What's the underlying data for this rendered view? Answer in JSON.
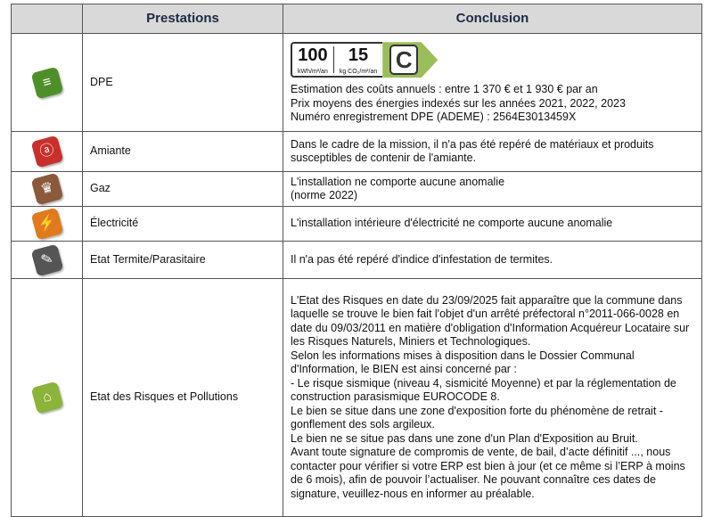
{
  "headers": {
    "prestations": "Prestations",
    "conclusion": "Conclusion"
  },
  "dpe_label": {
    "energy_value": "100",
    "energy_unit": "kWh/m²/an",
    "co2_value": "15",
    "co2_unit": "kg CO₂/m²/an",
    "class": "C",
    "class_color": "#9cbd5b"
  },
  "rows": [
    {
      "name": "DPE",
      "icon": "energy-label-icon",
      "color": "#4f8f2a",
      "lines": [
        "Estimation des coûts annuels : entre 1 370 € et 1 930 € par an",
        "Prix moyens des énergies indexés sur les années 2021, 2022, 2023",
        "Numéro enregistrement DPE (ADEME) : 2564E3013459X"
      ]
    },
    {
      "name": "Amiante",
      "icon": "asbestos-warning-icon",
      "color": "#c8302c",
      "lines": [
        "Dans le cadre de la mission, il n'a pas été repéré de matériaux et produits susceptibles de contenir de l'amiante."
      ]
    },
    {
      "name": "Gaz",
      "icon": "gas-flame-icon",
      "color": "#8a5a3c",
      "lines": [
        "L'installation ne comporte aucune anomalie",
        "(norme 2022)"
      ]
    },
    {
      "name": "Électricité",
      "icon": "electric-plug-icon",
      "color": "#e07a1f",
      "lines": [
        "L'installation intérieure d'électricité ne comporte aucune anomalie"
      ]
    },
    {
      "name": "Etat Termite/Parasitaire",
      "icon": "termite-icon",
      "color": "#555555",
      "lines": [
        "Il n'a pas été repéré d'indice d'infestation de termites."
      ]
    },
    {
      "name": "Etat des Risques et Pollutions",
      "icon": "risk-house-icon",
      "color": "#8cb33a",
      "lines": [
        "L'Etat des Risques en date du 23/09/2025 fait apparaître que la commune dans laquelle se trouve le bien fait l'objet d'un arrêté préfectoral n°2011-066-0028 en date du 09/03/2011 en matière d'obligation d'Information Acquéreur Locataire sur les Risques Naturels, Miniers et Technologiques.",
        "Selon les informations mises à disposition dans le Dossier Communal d'Information, le BIEN est ainsi concerné par :",
        "- Le risque sismique (niveau 4, sismicité Moyenne) et par la réglementation de construction parasismique EUROCODE 8.",
        "Le bien se situe dans une zone d'exposition forte du phénomène de retrait - gonflement des sols argileux.",
        "Le bien ne se situe pas dans une zone d'un Plan d'Exposition au Bruit.",
        "Avant toute signature de compromis de vente, de bail, d’acte définitif ..., nous contacter pour vérifier si votre ERP est bien à jour (et ce même si l’ERP à moins de 6 mois), afin de pouvoir l’actualiser. Ne pouvant connaître ces dates de signature, veuillez-nous en informer au préalable."
      ]
    }
  ]
}
